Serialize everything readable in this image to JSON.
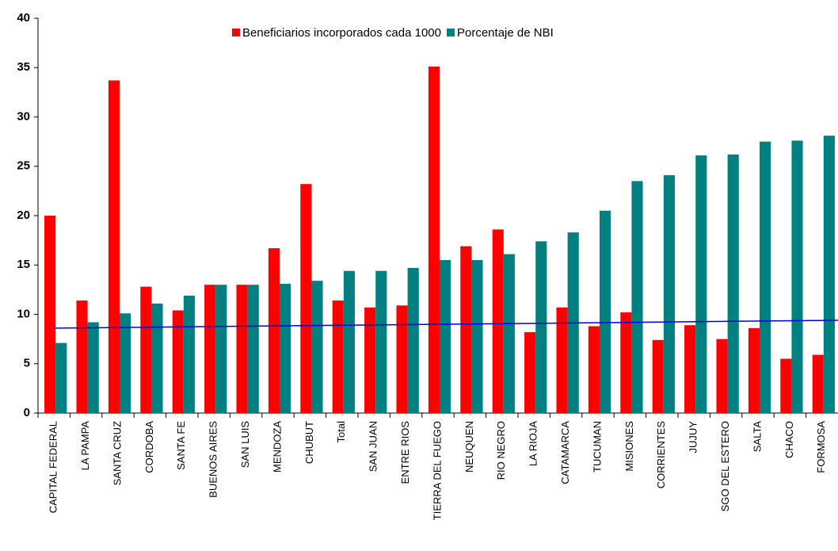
{
  "chart_data": {
    "type": "bar",
    "categories": [
      "CAPITAL FEDERAL",
      "LA PAMPA",
      "SANTA CRUZ",
      "CORDOBA",
      "SANTA FE",
      "BUENOS AIRES",
      "SAN LUIS",
      "MENDOZA",
      "CHUBUT",
      "Total",
      "SAN JUAN",
      "ENTRE RIOS",
      "TIERRA DEL FUEGO",
      "NEUQUEN",
      "RIO NEGRO",
      "LA RIOJA",
      "CATAMARCA",
      "TUCUMAN",
      "MISIONES",
      "CORRIENTES",
      "JUJUY",
      "SGO DEL ESTERO",
      "SALTA",
      "CHACO",
      "FORMOSA"
    ],
    "series": [
      {
        "name": "Beneficiarios incorporados cada 1000",
        "color": "#ff0000",
        "values": [
          20,
          11.4,
          33.7,
          12.8,
          10.4,
          13,
          13,
          16.7,
          23.2,
          11.4,
          10.7,
          10.9,
          35.1,
          16.9,
          18.6,
          8.2,
          10.7,
          8.8,
          10.2,
          7.4,
          8.9,
          7.5,
          8.6,
          5.5,
          5.9
        ]
      },
      {
        "name": "Porcentaje de NBI",
        "color": "#008080",
        "values": [
          7.1,
          9.2,
          10.1,
          11.1,
          11.9,
          13,
          13,
          13.1,
          13.4,
          14.4,
          14.4,
          14.7,
          15.5,
          15.5,
          16.1,
          17.4,
          18.3,
          20.5,
          23.5,
          24.1,
          26.1,
          26.2,
          27.5,
          27.6,
          28.1
        ]
      }
    ],
    "trend": {
      "color": "#0000dd",
      "values": [
        8.6,
        9.4
      ]
    },
    "ylim": [
      0,
      40
    ],
    "yticks": [
      0,
      5,
      10,
      15,
      20,
      25,
      30,
      35,
      40
    ],
    "grid": false,
    "legend": "top"
  }
}
